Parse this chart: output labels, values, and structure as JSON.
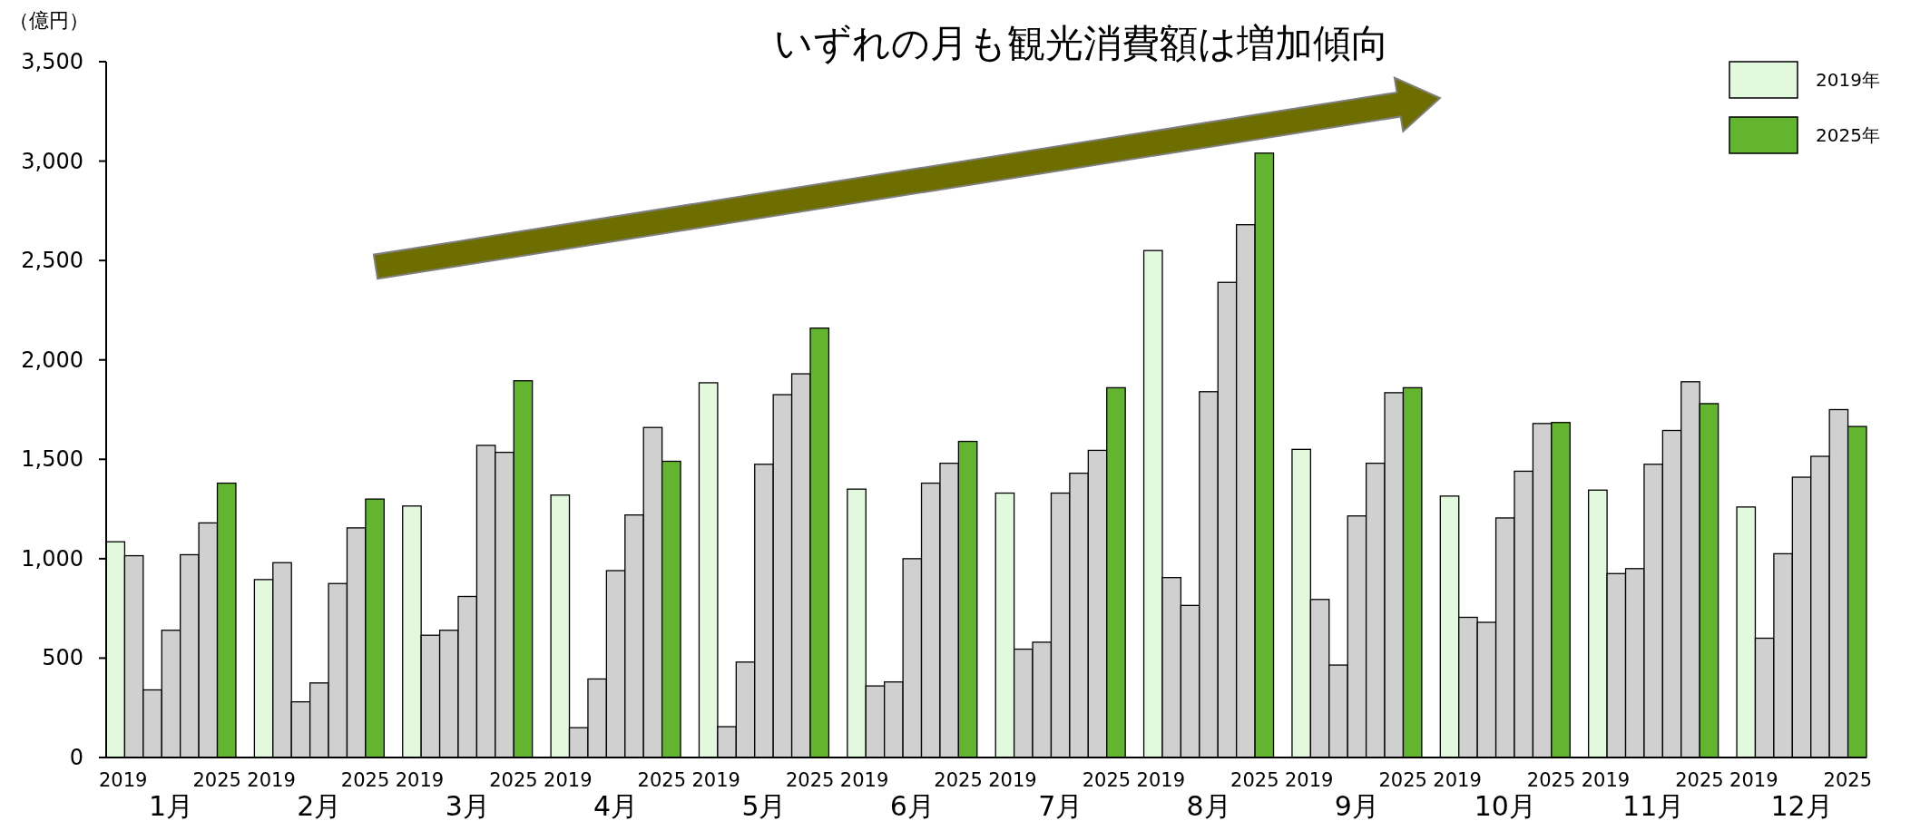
{
  "chart_data": {
    "type": "bar",
    "title": "いずれの月も観光消費額は増加傾向",
    "ylabel": "（億円）",
    "categories": [
      "1月",
      "2月",
      "3月",
      "4月",
      "5月",
      "6月",
      "7月",
      "8月",
      "9月",
      "10月",
      "11月",
      "12月"
    ],
    "series": [
      {
        "name": "2019年",
        "color": "#e2f9dd",
        "values": [
          1085,
          895,
          1265,
          1320,
          1885,
          1350,
          1330,
          2550,
          1550,
          1315,
          1345,
          1260
        ]
      },
      {
        "color": "#d0d0d0",
        "values": [
          1015,
          980,
          615,
          150,
          155,
          360,
          545,
          905,
          795,
          705,
          925,
          600
        ]
      },
      {
        "color": "#d0d0d0",
        "values": [
          340,
          280,
          640,
          395,
          480,
          380,
          580,
          765,
          465,
          680,
          950,
          1025
        ]
      },
      {
        "color": "#d0d0d0",
        "values": [
          640,
          375,
          810,
          940,
          1475,
          1000,
          1330,
          1840,
          1215,
          1205,
          1475,
          1410
        ]
      },
      {
        "color": "#d0d0d0",
        "values": [
          1020,
          875,
          1570,
          1220,
          1825,
          1380,
          1430,
          2390,
          1480,
          1440,
          1645,
          1515
        ]
      },
      {
        "color": "#d0d0d0",
        "values": [
          1180,
          1155,
          1535,
          1660,
          1930,
          1480,
          1545,
          2680,
          1835,
          1680,
          1890,
          1750
        ]
      },
      {
        "name": "2025年",
        "color": "#63b530",
        "values": [
          1380,
          1300,
          1895,
          1490,
          2160,
          1590,
          1860,
          3040,
          1860,
          1685,
          1780,
          1665
        ]
      }
    ],
    "ylim": [
      0,
      3500
    ],
    "yticks": [
      0,
      500,
      {
        "value": 1000,
        "label": "1,000"
      },
      {
        "value": 1500,
        "label": "1,500"
      },
      {
        "value": 2000,
        "label": "2,000"
      },
      {
        "value": 2500,
        "label": "2,500"
      },
      {
        "value": 3000,
        "label": "3,000"
      },
      {
        "value": 3500,
        "label": "3,500"
      }
    ],
    "legend": "top right",
    "annotations": [
      "2019",
      "2025",
      "2019",
      "2025",
      "2019",
      "2025",
      "2019",
      "2025",
      "2019",
      "2025",
      "2019",
      "2025",
      "2019",
      "2025",
      "2019",
      "2025",
      "2019",
      "2025",
      "2019",
      "2025",
      "2019",
      "2025",
      "2019",
      "2025"
    ]
  }
}
